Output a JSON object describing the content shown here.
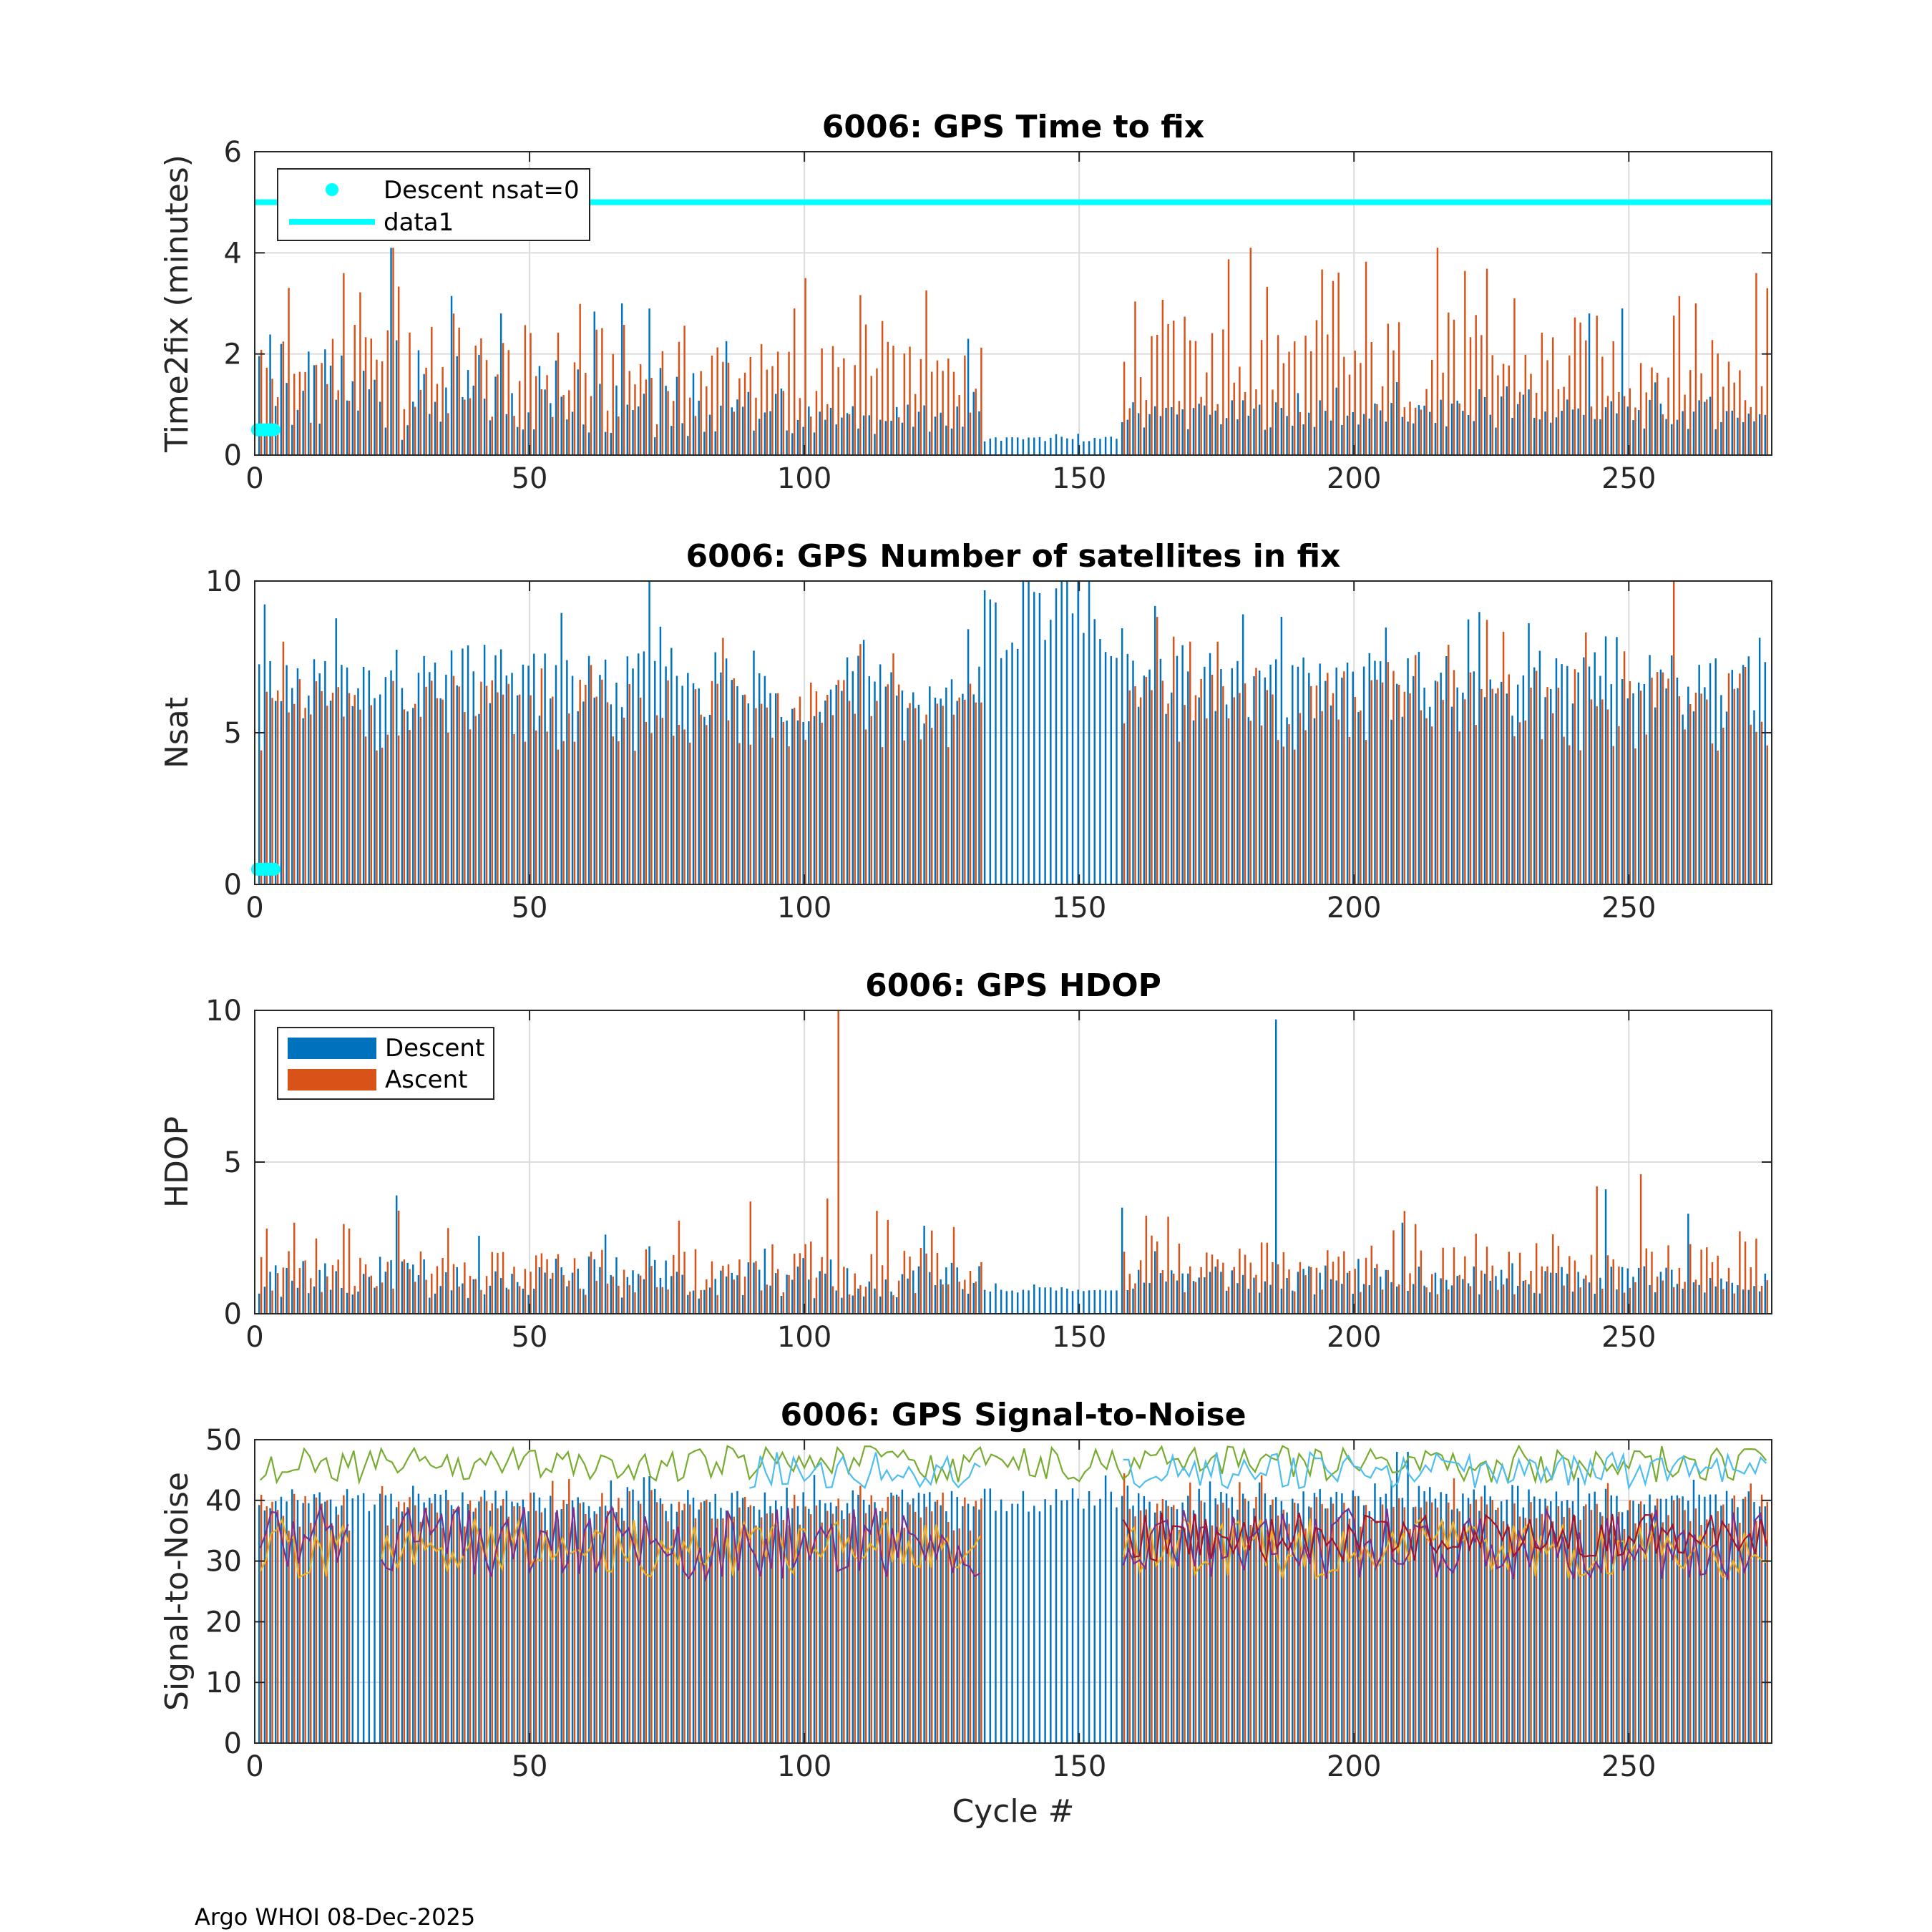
{
  "footer": "Argo WHOI 08-Dec-2025",
  "colors": {
    "descent": "#0072bd",
    "ascent": "#d95319",
    "cyan": "#00ffff",
    "snr_green": "#77ac30",
    "snr_lightblue": "#4dbeee",
    "snr_yellow": "#edb120",
    "snr_purple": "#7e2f8e",
    "snr_darkred": "#a2142f",
    "grid": "#dcdcdc"
  },
  "chart_data": [
    {
      "type": "bar",
      "title": "6006: GPS Time to fix",
      "xlabel": "",
      "ylabel": "Time2fix (minutes)",
      "xlim": [
        0,
        276
      ],
      "ylim": [
        0,
        6
      ],
      "xticks": [
        "0",
        "50",
        "100",
        "150",
        "200",
        "250"
      ],
      "yticks": [
        "0",
        "2",
        "4",
        "6"
      ],
      "threshold": 5,
      "descent_nsat0": [
        [
          0.5,
          0.5
        ],
        [
          1,
          0.5
        ],
        [
          1.5,
          0.5
        ],
        [
          2,
          0.5
        ],
        [
          2.5,
          0.5
        ],
        [
          3,
          0.5
        ],
        [
          3.5,
          0.5
        ]
      ],
      "legend": {
        "placement": "top-left",
        "entries": [
          "Descent nsat=0",
          "data1"
        ]
      },
      "series": [
        {
          "name": "Descent",
          "stats": {
            "segments": [
              {
                "from": 0,
                "to": 88,
                "mean": 1.2,
                "amp": 0.9
              },
              {
                "from": 89,
                "to": 132,
                "mean": 0.7,
                "amp": 0.3
              },
              {
                "from": 133,
                "to": 157,
                "mean": 0.32,
                "amp": 0.05
              },
              {
                "from": 158,
                "to": 276,
                "mean": 0.8,
                "amp": 0.3
              }
            ]
          },
          "peaks": [
            [
              25,
              4.1
            ],
            [
              45,
              2.8
            ],
            [
              67,
              3.0
            ],
            [
              72,
              2.9
            ],
            [
              130,
              2.3
            ],
            [
              243,
              2.8
            ],
            [
              249,
              2.9
            ]
          ]
        },
        {
          "name": "Ascent",
          "stats": {
            "segments": [
              {
                "from": 0,
                "to": 88,
                "mean": 1.6,
                "amp": 1.0
              },
              {
                "from": 89,
                "to": 132,
                "mean": 1.5,
                "amp": 0.8
              },
              {
                "from": 158,
                "to": 276,
                "mean": 1.8,
                "amp": 1.0
              }
            ]
          },
          "peaks": [
            [
              16,
              3.6
            ],
            [
              25,
              4.1
            ],
            [
              36,
              2.8
            ],
            [
              98,
              2.9
            ],
            [
              100,
              3.5
            ],
            [
              181,
              4.1
            ],
            [
              215,
              4.1
            ],
            [
              229,
              3.1
            ],
            [
              262,
              3.0
            ],
            [
              273,
              3.6
            ],
            [
              275,
              3.3
            ]
          ]
        }
      ]
    },
    {
      "type": "bar",
      "title": "6006: GPS Number of satellites in fix",
      "xlabel": "",
      "ylabel": "Nsat",
      "xlim": [
        0,
        276
      ],
      "ylim": [
        0,
        10
      ],
      "xticks": [
        "0",
        "50",
        "100",
        "150",
        "200",
        "250"
      ],
      "yticks": [
        "0",
        "5",
        "10"
      ],
      "descent_nsat0": [
        [
          0.5,
          0.5
        ],
        [
          1,
          0.5
        ],
        [
          1.5,
          0.5
        ],
        [
          2,
          0.5
        ],
        [
          2.5,
          0.5
        ],
        [
          3,
          0.5
        ],
        [
          3.5,
          0.5
        ]
      ],
      "series": [
        {
          "name": "Descent",
          "stats": {
            "segments": [
              {
                "from": 0,
                "to": 88,
                "mean": 6.6,
                "amp": 1.2
              },
              {
                "from": 89,
                "to": 132,
                "mean": 6.3,
                "amp": 1.0
              },
              {
                "from": 133,
                "to": 157,
                "mean": 8.6,
                "amp": 1.2
              },
              {
                "from": 158,
                "to": 276,
                "mean": 6.6,
                "amp": 1.2
              }
            ]
          },
          "peaks": [
            [
              72,
              10
            ],
            [
              141,
              10
            ],
            [
              147,
              10
            ],
            [
              148,
              10
            ],
            [
              150,
              10
            ],
            [
              152,
              10
            ]
          ]
        },
        {
          "name": "Ascent",
          "stats": {
            "segments": [
              {
                "from": 0,
                "to": 88,
                "mean": 5.6,
                "amp": 1.2
              },
              {
                "from": 89,
                "to": 132,
                "mean": 5.6,
                "amp": 1.2
              },
              {
                "from": 158,
                "to": 276,
                "mean": 5.8,
                "amp": 1.4
              }
            ]
          },
          "peaks": [
            [
              258,
              10
            ],
            [
              5,
              8
            ],
            [
              170,
              8
            ],
            [
              175,
              8
            ]
          ]
        }
      ]
    },
    {
      "type": "bar",
      "title": "6006: GPS HDOP",
      "xlabel": "",
      "ylabel": "HDOP",
      "xlim": [
        0,
        276
      ],
      "ylim": [
        0,
        10
      ],
      "xticks": [
        "0",
        "50",
        "100",
        "150",
        "200",
        "250"
      ],
      "yticks": [
        "0",
        "5",
        "10"
      ],
      "legend": {
        "placement": "top-left",
        "entries": [
          "Descent",
          "Ascent"
        ]
      },
      "series": [
        {
          "name": "Descent",
          "stats": {
            "segments": [
              {
                "from": 0,
                "to": 88,
                "mean": 1.2,
                "amp": 0.7
              },
              {
                "from": 89,
                "to": 132,
                "mean": 1.1,
                "amp": 0.6
              },
              {
                "from": 133,
                "to": 157,
                "mean": 0.8,
                "amp": 0.1
              },
              {
                "from": 158,
                "to": 276,
                "mean": 1.1,
                "amp": 0.5
              }
            ]
          },
          "peaks": [
            [
              26,
              3.9
            ],
            [
              186,
              9.7
            ],
            [
              122,
              2.9
            ],
            [
              158,
              3.5
            ],
            [
              246,
              4.1
            ],
            [
              261,
              3.3
            ],
            [
              209,
              3.0
            ]
          ]
        },
        {
          "name": "Ascent",
          "stats": {
            "segments": [
              {
                "from": 0,
                "to": 88,
                "mean": 1.4,
                "amp": 0.8
              },
              {
                "from": 89,
                "to": 132,
                "mean": 1.5,
                "amp": 0.9
              },
              {
                "from": 158,
                "to": 276,
                "mean": 1.5,
                "amp": 0.9
              }
            ]
          },
          "peaks": [
            [
              106,
              10
            ],
            [
              90,
              3.7
            ],
            [
              104,
              3.8
            ],
            [
              26,
              3.4
            ],
            [
              166,
              3.2
            ],
            [
              244,
              4.2
            ],
            [
              252,
              4.6
            ],
            [
              7,
              3.0
            ]
          ]
        }
      ]
    },
    {
      "type": "bar",
      "title": "6006: GPS Signal-to-Noise",
      "xlabel": "Cycle #",
      "ylabel": "Signal-to-Noise",
      "xlim": [
        0,
        276
      ],
      "ylim": [
        0,
        50
      ],
      "xticks": [
        "0",
        "50",
        "100",
        "150",
        "200",
        "250"
      ],
      "yticks": [
        "0",
        "10",
        "20",
        "30",
        "40",
        "50"
      ],
      "series": [
        {
          "name": "Descent",
          "stats": {
            "segments": [
              {
                "from": 0,
                "to": 88,
                "mean": 40,
                "amp": 2
              },
              {
                "from": 89,
                "to": 157,
                "mean": 40,
                "amp": 2
              },
              {
                "from": 158,
                "to": 276,
                "mean": 40,
                "amp": 2
              }
            ]
          },
          "peaks": [
            [
              208,
              48
            ],
            [
              210,
              48
            ]
          ]
        },
        {
          "name": "Ascent",
          "stats": {
            "segments": [
              {
                "from": 0,
                "to": 88,
                "mean": 38,
                "amp": 3
              },
              {
                "from": 89,
                "to": 132,
                "mean": 38,
                "amp": 3
              },
              {
                "from": 158,
                "to": 276,
                "mean": 38,
                "amp": 3
              }
            ]
          },
          "peaks": []
        }
      ],
      "lines": [
        {
          "name": "snr_green",
          "mean": 46,
          "amp": 3,
          "from": 0,
          "to": 276
        },
        {
          "name": "snr_lightblue",
          "mean": 45,
          "amp": 3,
          "from": 90,
          "to": 276
        },
        {
          "name": "snr_yellow",
          "mean": 32,
          "amp": 5,
          "from": 0,
          "to": 276
        },
        {
          "name": "snr_purple",
          "mean": 33,
          "amp": 6,
          "from": 0,
          "to": 276
        },
        {
          "name": "snr_darkred",
          "mean": 34,
          "amp": 4,
          "from": 158,
          "to": 276
        }
      ],
      "gaps": [
        [
          18,
          22
        ],
        [
          133,
          157
        ]
      ]
    }
  ]
}
